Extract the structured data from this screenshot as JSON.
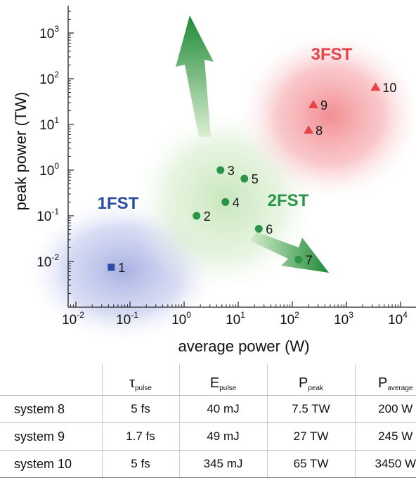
{
  "chart_data": {
    "type": "scatter",
    "xlabel": "average power (W)",
    "ylabel": "peak power (TW)",
    "x_scale": "log",
    "y_scale": "log",
    "x_ticks": [
      "10-2",
      "10-1",
      "100",
      "101",
      "102",
      "103",
      "104"
    ],
    "y_ticks": [
      "10-2",
      "10-1",
      "100",
      "101",
      "102",
      "103"
    ],
    "regions": [
      {
        "label": "1FST",
        "color": "#2b4ea3"
      },
      {
        "label": "2FST",
        "color": "#2a9448"
      },
      {
        "label": "3FST",
        "color": "#e8424a"
      }
    ],
    "points": [
      {
        "label": "1",
        "x": 0.045,
        "y": 0.0075,
        "marker": "square",
        "color": "#2b4ea3"
      },
      {
        "label": "2",
        "x": 1.7,
        "y": 0.1,
        "marker": "circle",
        "color": "#2a9448"
      },
      {
        "label": "3",
        "x": 4.7,
        "y": 1.0,
        "marker": "circle",
        "color": "#2a9448"
      },
      {
        "label": "4",
        "x": 5.8,
        "y": 0.2,
        "marker": "circle",
        "color": "#2a9448"
      },
      {
        "label": "5",
        "x": 13,
        "y": 0.65,
        "marker": "circle",
        "color": "#2a9448"
      },
      {
        "label": "6",
        "x": 24,
        "y": 0.052,
        "marker": "circle",
        "color": "#2a9448"
      },
      {
        "label": "7",
        "x": 130,
        "y": 0.011,
        "marker": "circle",
        "color": "#2a9448"
      },
      {
        "label": "8",
        "x": 200,
        "y": 7.5,
        "marker": "triangle",
        "color": "#e8424a"
      },
      {
        "label": "9",
        "x": 245,
        "y": 27,
        "marker": "triangle",
        "color": "#e8424a"
      },
      {
        "label": "10",
        "x": 3450,
        "y": 65,
        "marker": "triangle",
        "color": "#e8424a"
      }
    ]
  },
  "table": {
    "headers": [
      {
        "main": "τ",
        "sub": "pulse"
      },
      {
        "main": "E",
        "sub": "pulse"
      },
      {
        "main": "P",
        "sub": "peak"
      },
      {
        "main": "P",
        "sub": "average"
      }
    ],
    "rows": [
      {
        "label": "system 8",
        "cells": [
          "5 fs",
          "40 mJ",
          "7.5 TW",
          "200 W"
        ]
      },
      {
        "label": "system 9",
        "cells": [
          "1.7 fs",
          "49 mJ",
          "27 TW",
          "245 W"
        ]
      },
      {
        "label": "system 10",
        "cells": [
          "5 fs",
          "345 mJ",
          "65 TW",
          "3450 W"
        ]
      }
    ]
  }
}
